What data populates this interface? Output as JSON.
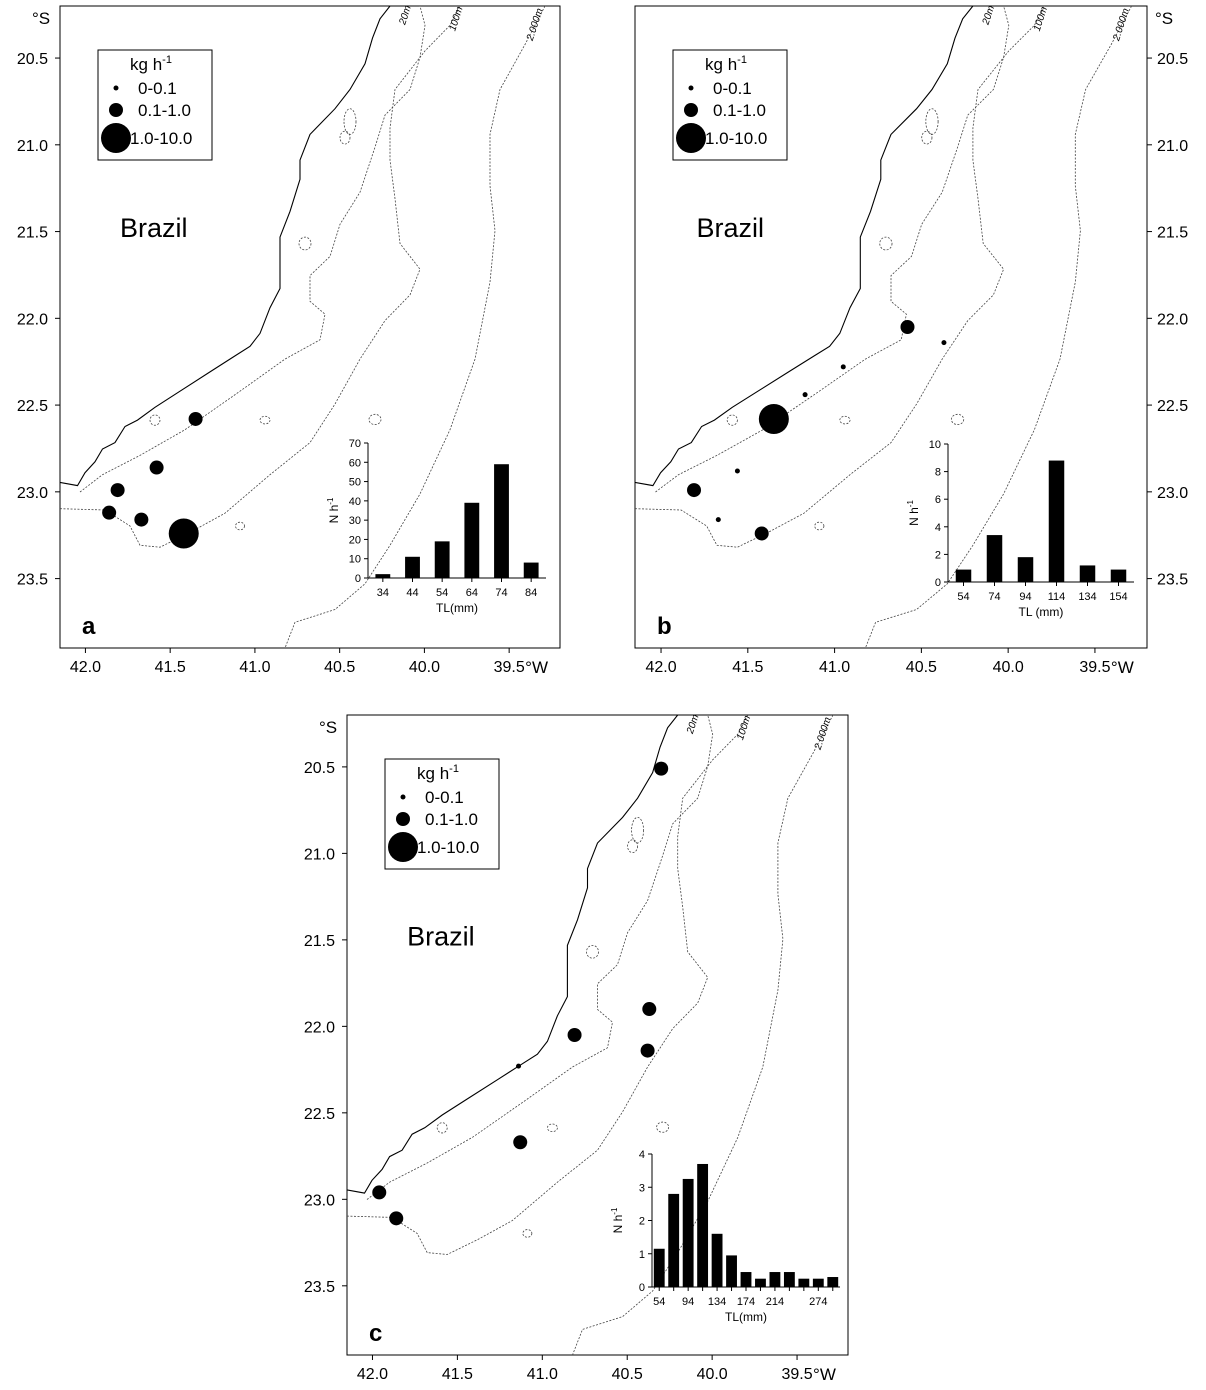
{
  "units": {
    "lat": "°S",
    "lon": "°W"
  },
  "latitude_ticks": [
    "20.5",
    "21.0",
    "21.5",
    "22.0",
    "22.5",
    "23.0",
    "23.5"
  ],
  "longitude_ticks": [
    "42.0",
    "41.5",
    "41.0",
    "40.5",
    "40.0",
    "39.5"
  ],
  "isobath_labels": [
    "20m",
    "100m",
    "2.000m"
  ],
  "country_label": "Brazil",
  "legend": {
    "title_main": "kg h",
    "title_sup": "-1",
    "classes": [
      "0-0.1",
      "0.1-1.0",
      "1.0-10.0"
    ]
  },
  "panels": [
    {
      "id": "a",
      "stations": [
        {
          "lon": 41.35,
          "lat": 22.58,
          "size_class": 1
        },
        {
          "lon": 41.58,
          "lat": 22.86,
          "size_class": 1
        },
        {
          "lon": 41.81,
          "lat": 22.99,
          "size_class": 1
        },
        {
          "lon": 41.86,
          "lat": 23.12,
          "size_class": 1
        },
        {
          "lon": 41.67,
          "lat": 23.16,
          "size_class": 1
        },
        {
          "lon": 41.42,
          "lat": 23.24,
          "size_class": 2
        }
      ],
      "chart_data": {
        "type": "bar",
        "xlabel": "TL(mm)",
        "ylabel_main": "N h",
        "ylabel_sup": "-1",
        "categories": [
          "34",
          "44",
          "54",
          "64",
          "74",
          "84"
        ],
        "values": [
          2,
          11,
          19,
          39,
          59,
          8
        ],
        "ylim": [
          0,
          70
        ],
        "yticks": [
          "0",
          "10",
          "20",
          "30",
          "40",
          "50",
          "60",
          "70"
        ]
      }
    },
    {
      "id": "b",
      "stations": [
        {
          "lon": 40.58,
          "lat": 22.05,
          "size_class": 1
        },
        {
          "lon": 40.37,
          "lat": 22.14,
          "size_class": 0
        },
        {
          "lon": 40.95,
          "lat": 22.28,
          "size_class": 0
        },
        {
          "lon": 41.17,
          "lat": 22.44,
          "size_class": 0
        },
        {
          "lon": 41.35,
          "lat": 22.58,
          "size_class": 2
        },
        {
          "lon": 41.56,
          "lat": 22.88,
          "size_class": 0
        },
        {
          "lon": 41.81,
          "lat": 22.99,
          "size_class": 1
        },
        {
          "lon": 41.67,
          "lat": 23.16,
          "size_class": 0
        },
        {
          "lon": 41.42,
          "lat": 23.24,
          "size_class": 1
        }
      ],
      "chart_data": {
        "type": "bar",
        "xlabel": "TL (mm)",
        "ylabel_main": "N h",
        "ylabel_sup": "-1",
        "categories": [
          "54",
          "74",
          "94",
          "114",
          "134",
          "154"
        ],
        "values": [
          0.9,
          3.4,
          1.8,
          8.8,
          1.2,
          0.9
        ],
        "ylim": [
          0,
          10
        ],
        "yticks": [
          "0",
          "2",
          "4",
          "6",
          "8",
          "10"
        ]
      }
    },
    {
      "id": "c",
      "stations": [
        {
          "lon": 40.3,
          "lat": 20.51,
          "size_class": 1
        },
        {
          "lon": 40.37,
          "lat": 21.9,
          "size_class": 1
        },
        {
          "lon": 40.81,
          "lat": 22.05,
          "size_class": 1
        },
        {
          "lon": 40.38,
          "lat": 22.14,
          "size_class": 1
        },
        {
          "lon": 41.14,
          "lat": 22.23,
          "size_class": 0
        },
        {
          "lon": 41.13,
          "lat": 22.67,
          "size_class": 1
        },
        {
          "lon": 41.96,
          "lat": 22.96,
          "size_class": 1
        },
        {
          "lon": 41.86,
          "lat": 23.11,
          "size_class": 1
        }
      ],
      "chart_data": {
        "type": "bar",
        "xlabel": "TL(mm)",
        "ylabel_main": "N h",
        "ylabel_sup": "-1",
        "categories": [
          "54",
          "74",
          "94",
          "114",
          "134",
          "154",
          "174",
          "194",
          "214",
          "234",
          "254",
          "274",
          "294"
        ],
        "tick_labels": [
          "54",
          "94",
          "134",
          "174",
          "214",
          "274"
        ],
        "values": [
          1.15,
          2.8,
          3.25,
          3.7,
          1.6,
          0.95,
          0.45,
          0.25,
          0.45,
          0.45,
          0.25,
          0.25,
          0.3
        ],
        "ylim": [
          0,
          4
        ],
        "yticks": [
          "0",
          "1",
          "2",
          "3",
          "4"
        ]
      }
    }
  ]
}
